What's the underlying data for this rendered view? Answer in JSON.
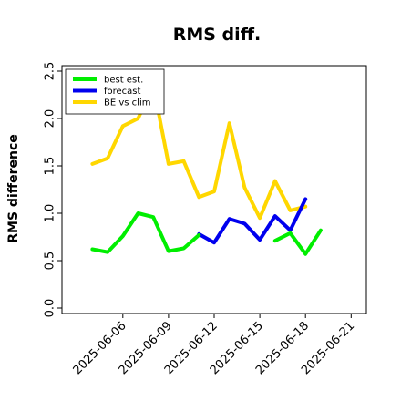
{
  "chart_data": {
    "type": "line",
    "title": "RMS diff.",
    "ylabel": "RMS difference",
    "xlabel": "",
    "ylim": [
      0,
      2.5
    ],
    "yticks": [
      "0.0",
      "0.5",
      "1.0",
      "1.5",
      "2.0",
      "2.5"
    ],
    "grid": false,
    "legend_position": "top-left",
    "x": [
      "2025-06-04",
      "2025-06-05",
      "2025-06-06",
      "2025-06-07",
      "2025-06-08",
      "2025-06-09",
      "2025-06-10",
      "2025-06-11",
      "2025-06-12",
      "2025-06-13",
      "2025-06-14",
      "2025-06-15",
      "2025-06-16",
      "2025-06-17",
      "2025-06-18",
      "2025-06-19",
      "2025-06-20"
    ],
    "xtick_labels": [
      {
        "date": "2025-06-06",
        "label": "2025-06-06",
        "color": "#000000"
      },
      {
        "date": "2025-06-09",
        "label": "2025-06-09",
        "color": "#000000"
      },
      {
        "date": "2025-06-12",
        "label": "2025-06-12",
        "color": "#2e8b57"
      },
      {
        "date": "2025-06-15",
        "label": "2025-06-15",
        "color": "#000000"
      },
      {
        "date": "2025-06-18",
        "label": "2025-06-18",
        "color": "#000000"
      },
      {
        "date": "2025-06-21",
        "label": "2025-06-21",
        "color": "#000000"
      }
    ],
    "series": [
      {
        "name": "best est.",
        "color": "#00ee00",
        "values": [
          0.62,
          0.59,
          0.76,
          1.0,
          0.96,
          0.6,
          0.63,
          0.77,
          null,
          null,
          null,
          null,
          0.71,
          0.79,
          0.57,
          0.82,
          null
        ]
      },
      {
        "name": "forecast",
        "color": "#0000ee",
        "values": [
          null,
          null,
          null,
          null,
          null,
          null,
          null,
          0.78,
          0.69,
          0.94,
          0.89,
          0.72,
          0.97,
          0.82,
          1.15,
          null,
          null
        ]
      },
      {
        "name": "BE vs clim",
        "color": "#ffd700",
        "values": [
          1.52,
          1.58,
          1.92,
          2.0,
          2.35,
          1.52,
          1.55,
          1.17,
          1.23,
          1.95,
          1.27,
          0.95,
          1.34,
          1.03,
          1.07,
          null,
          null
        ]
      }
    ]
  }
}
